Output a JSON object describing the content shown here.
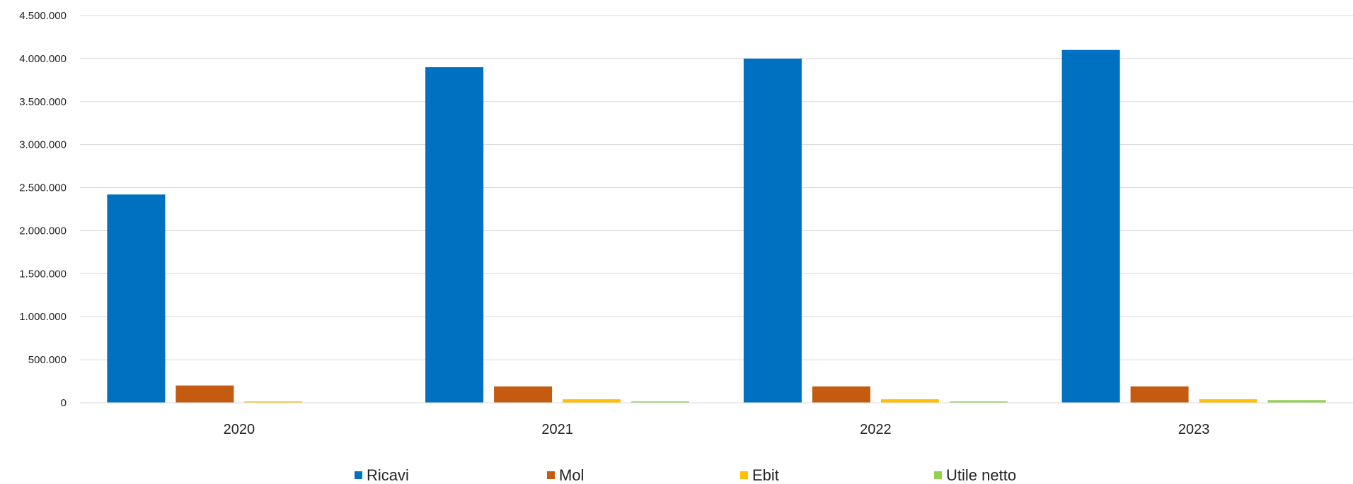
{
  "chart_data": {
    "type": "bar",
    "title": "",
    "xlabel": "",
    "ylabel": "",
    "categories": [
      "2020",
      "2021",
      "2022",
      "2023"
    ],
    "ylim": [
      0,
      4500000
    ],
    "yticks": [
      0,
      500000,
      1000000,
      1500000,
      2000000,
      2500000,
      3000000,
      3500000,
      4000000,
      4500000
    ],
    "ytick_labels": [
      "0",
      "500.000",
      "1.000.000",
      "1.500.000",
      "2.000.000",
      "2.500.000",
      "3.000.000",
      "3.500.000",
      "4.000.000",
      "4.500.000"
    ],
    "grid": true,
    "legend_position": "bottom",
    "series": [
      {
        "name": "Ricavi",
        "color": "#0070C0",
        "values": [
          2420000,
          3900000,
          4000000,
          4100000
        ]
      },
      {
        "name": "Mol",
        "color": "#C55A11",
        "values": [
          200000,
          190000,
          190000,
          190000
        ]
      },
      {
        "name": "Ebit",
        "color": "#FFC000",
        "values": [
          15000,
          40000,
          40000,
          40000
        ]
      },
      {
        "name": "Utile netto",
        "color": "#92D050",
        "values": [
          0,
          15000,
          15000,
          30000
        ]
      }
    ]
  }
}
